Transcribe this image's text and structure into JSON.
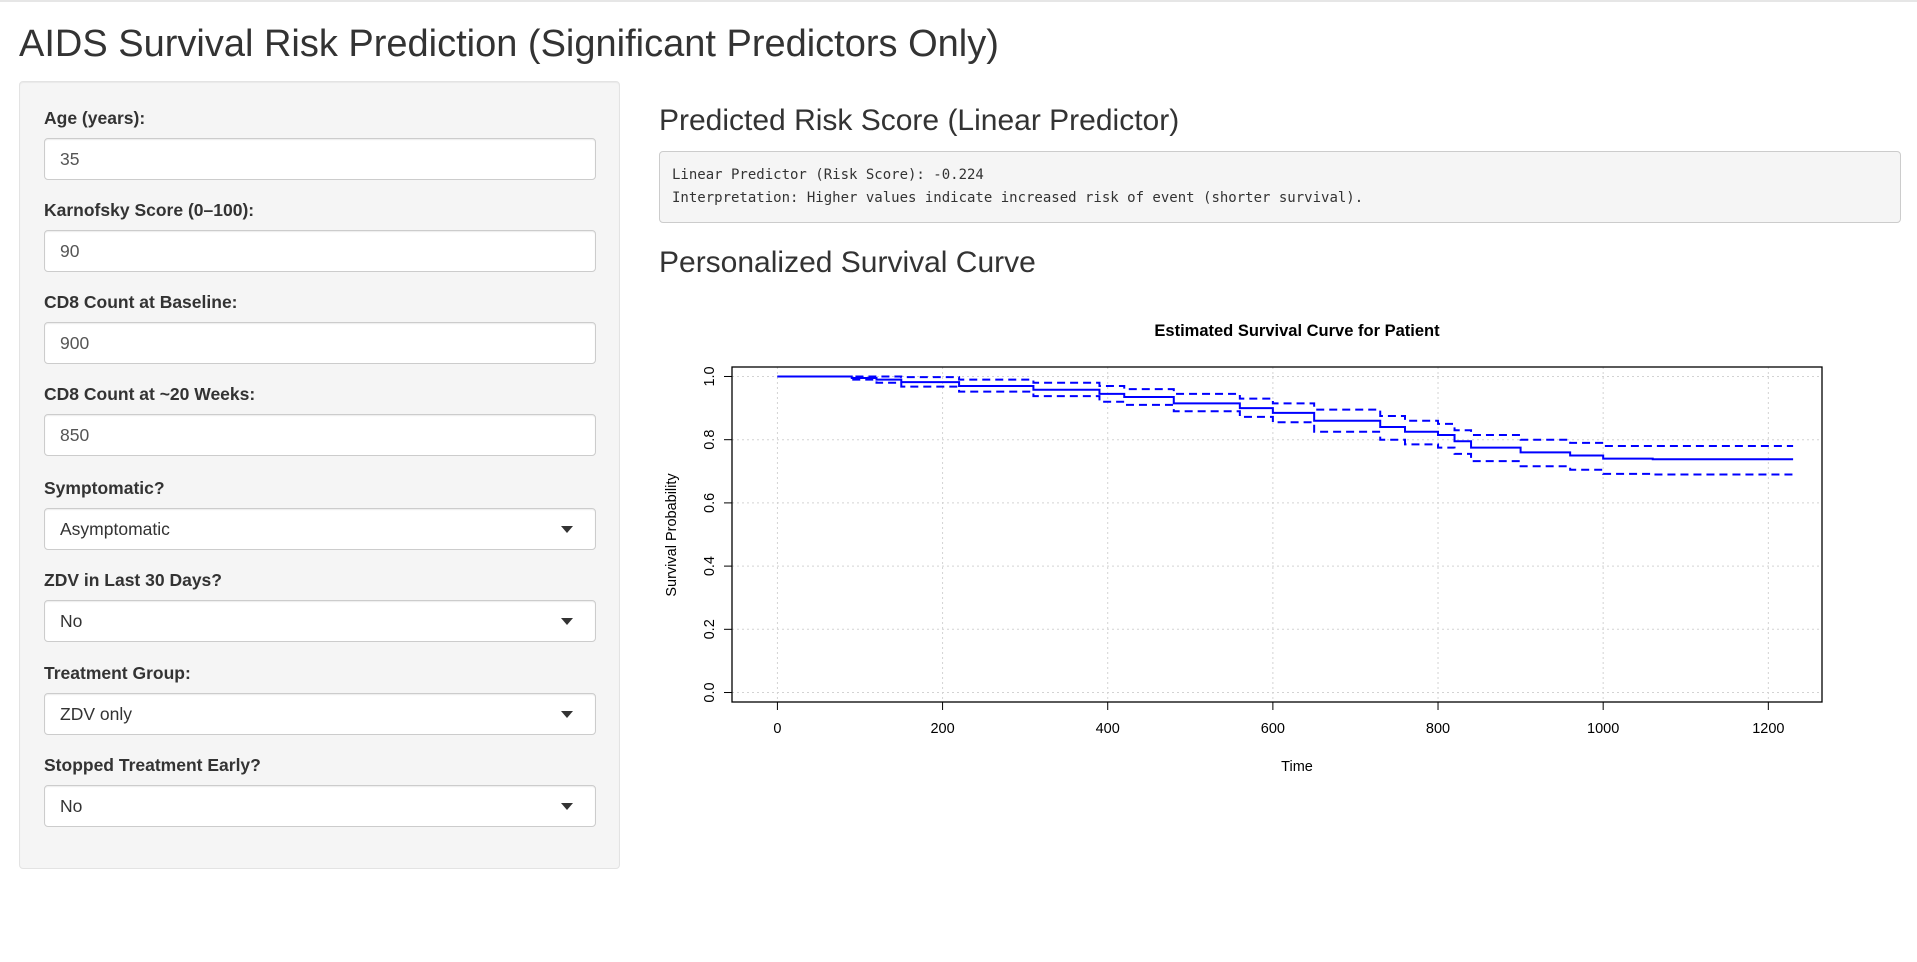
{
  "page": {
    "title": "AIDS Survival Risk Prediction (Significant Predictors Only)"
  },
  "sidebar": {
    "age": {
      "label": "Age (years):",
      "value": "35"
    },
    "karnofsky": {
      "label": "Karnofsky Score (0–100):",
      "value": "90"
    },
    "cd8_baseline": {
      "label": "CD8 Count at Baseline:",
      "value": "900"
    },
    "cd8_20wk": {
      "label": "CD8 Count at ~20 Weeks:",
      "value": "850"
    },
    "symptomatic": {
      "label": "Symptomatic?",
      "selected": "Asymptomatic"
    },
    "zdv30": {
      "label": "ZDV in Last 30 Days?",
      "selected": "No"
    },
    "treatment": {
      "label": "Treatment Group:",
      "selected": "ZDV only"
    },
    "stopped": {
      "label": "Stopped Treatment Early?",
      "selected": "No"
    }
  },
  "main": {
    "risk_title": "Predicted Risk Score (Linear Predictor)",
    "risk_output": {
      "line1": "Linear Predictor (Risk Score): -0.224",
      "line2": "Interpretation: Higher values indicate increased risk of event (shorter survival)."
    },
    "curve_title": "Personalized Survival Curve"
  },
  "chart_data": {
    "type": "line",
    "title": "Estimated Survival Curve for Patient",
    "xlabel": "Time",
    "ylabel": "Survival Probability",
    "xlim": [
      -55,
      1265
    ],
    "ylim": [
      -0.03,
      1.03
    ],
    "x_ticks": [
      0,
      200,
      400,
      600,
      800,
      1000,
      1200
    ],
    "y_ticks": [
      "0.0",
      "0.2",
      "0.4",
      "0.6",
      "0.8",
      "1.0"
    ],
    "grid": true,
    "step": true,
    "color": "#0000ff",
    "series": [
      {
        "role": "estimate",
        "style": "solid",
        "x": [
          0,
          90,
          120,
          150,
          220,
          310,
          390,
          420,
          480,
          560,
          600,
          650,
          730,
          760,
          800,
          820,
          840,
          900,
          960,
          1000,
          1060,
          1230
        ],
        "y": [
          1.0,
          0.995,
          0.99,
          0.982,
          0.97,
          0.958,
          0.945,
          0.935,
          0.915,
          0.9,
          0.885,
          0.86,
          0.84,
          0.825,
          0.815,
          0.795,
          0.775,
          0.76,
          0.75,
          0.74,
          0.738,
          0.738
        ]
      },
      {
        "role": "upper",
        "style": "dashed",
        "x": [
          0,
          90,
          120,
          150,
          220,
          310,
          390,
          420,
          480,
          560,
          600,
          650,
          730,
          760,
          800,
          820,
          840,
          900,
          960,
          1000,
          1060,
          1230
        ],
        "y": [
          1.0,
          1.0,
          1.0,
          0.998,
          0.99,
          0.98,
          0.97,
          0.96,
          0.945,
          0.93,
          0.915,
          0.895,
          0.875,
          0.86,
          0.85,
          0.83,
          0.815,
          0.8,
          0.79,
          0.78,
          0.78,
          0.78
        ]
      },
      {
        "role": "lower",
        "style": "dashed",
        "x": [
          0,
          90,
          120,
          150,
          220,
          310,
          390,
          420,
          480,
          560,
          600,
          650,
          730,
          760,
          800,
          820,
          840,
          900,
          960,
          1000,
          1060,
          1230
        ],
        "y": [
          1.0,
          0.99,
          0.98,
          0.968,
          0.952,
          0.938,
          0.92,
          0.91,
          0.89,
          0.872,
          0.855,
          0.825,
          0.8,
          0.785,
          0.775,
          0.755,
          0.732,
          0.716,
          0.705,
          0.692,
          0.69,
          0.69
        ]
      }
    ]
  }
}
